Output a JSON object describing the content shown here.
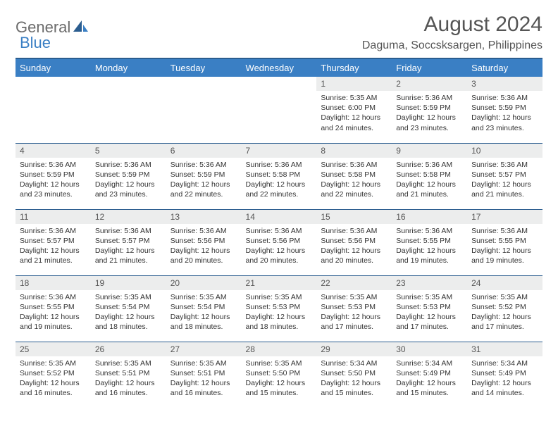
{
  "brand": {
    "word1": "General",
    "word2": "Blue"
  },
  "title": "August 2024",
  "location": "Daguma, Soccsksargen, Philippines",
  "colors": {
    "header_bg": "#3a7fc4",
    "header_border": "#2b5d8f",
    "daynum_bg": "#eceded",
    "text_muted": "#555"
  },
  "day_headers": [
    "Sunday",
    "Monday",
    "Tuesday",
    "Wednesday",
    "Thursday",
    "Friday",
    "Saturday"
  ],
  "weeks": [
    [
      {
        "n": "",
        "empty": true
      },
      {
        "n": "",
        "empty": true
      },
      {
        "n": "",
        "empty": true
      },
      {
        "n": "",
        "empty": true
      },
      {
        "n": "1",
        "sr": "Sunrise: 5:35 AM",
        "ss": "Sunset: 6:00 PM",
        "d1": "Daylight: 12 hours",
        "d2": "and 24 minutes."
      },
      {
        "n": "2",
        "sr": "Sunrise: 5:36 AM",
        "ss": "Sunset: 5:59 PM",
        "d1": "Daylight: 12 hours",
        "d2": "and 23 minutes."
      },
      {
        "n": "3",
        "sr": "Sunrise: 5:36 AM",
        "ss": "Sunset: 5:59 PM",
        "d1": "Daylight: 12 hours",
        "d2": "and 23 minutes."
      }
    ],
    [
      {
        "n": "4",
        "sr": "Sunrise: 5:36 AM",
        "ss": "Sunset: 5:59 PM",
        "d1": "Daylight: 12 hours",
        "d2": "and 23 minutes."
      },
      {
        "n": "5",
        "sr": "Sunrise: 5:36 AM",
        "ss": "Sunset: 5:59 PM",
        "d1": "Daylight: 12 hours",
        "d2": "and 23 minutes."
      },
      {
        "n": "6",
        "sr": "Sunrise: 5:36 AM",
        "ss": "Sunset: 5:59 PM",
        "d1": "Daylight: 12 hours",
        "d2": "and 22 minutes."
      },
      {
        "n": "7",
        "sr": "Sunrise: 5:36 AM",
        "ss": "Sunset: 5:58 PM",
        "d1": "Daylight: 12 hours",
        "d2": "and 22 minutes."
      },
      {
        "n": "8",
        "sr": "Sunrise: 5:36 AM",
        "ss": "Sunset: 5:58 PM",
        "d1": "Daylight: 12 hours",
        "d2": "and 22 minutes."
      },
      {
        "n": "9",
        "sr": "Sunrise: 5:36 AM",
        "ss": "Sunset: 5:58 PM",
        "d1": "Daylight: 12 hours",
        "d2": "and 21 minutes."
      },
      {
        "n": "10",
        "sr": "Sunrise: 5:36 AM",
        "ss": "Sunset: 5:57 PM",
        "d1": "Daylight: 12 hours",
        "d2": "and 21 minutes."
      }
    ],
    [
      {
        "n": "11",
        "sr": "Sunrise: 5:36 AM",
        "ss": "Sunset: 5:57 PM",
        "d1": "Daylight: 12 hours",
        "d2": "and 21 minutes."
      },
      {
        "n": "12",
        "sr": "Sunrise: 5:36 AM",
        "ss": "Sunset: 5:57 PM",
        "d1": "Daylight: 12 hours",
        "d2": "and 21 minutes."
      },
      {
        "n": "13",
        "sr": "Sunrise: 5:36 AM",
        "ss": "Sunset: 5:56 PM",
        "d1": "Daylight: 12 hours",
        "d2": "and 20 minutes."
      },
      {
        "n": "14",
        "sr": "Sunrise: 5:36 AM",
        "ss": "Sunset: 5:56 PM",
        "d1": "Daylight: 12 hours",
        "d2": "and 20 minutes."
      },
      {
        "n": "15",
        "sr": "Sunrise: 5:36 AM",
        "ss": "Sunset: 5:56 PM",
        "d1": "Daylight: 12 hours",
        "d2": "and 20 minutes."
      },
      {
        "n": "16",
        "sr": "Sunrise: 5:36 AM",
        "ss": "Sunset: 5:55 PM",
        "d1": "Daylight: 12 hours",
        "d2": "and 19 minutes."
      },
      {
        "n": "17",
        "sr": "Sunrise: 5:36 AM",
        "ss": "Sunset: 5:55 PM",
        "d1": "Daylight: 12 hours",
        "d2": "and 19 minutes."
      }
    ],
    [
      {
        "n": "18",
        "sr": "Sunrise: 5:36 AM",
        "ss": "Sunset: 5:55 PM",
        "d1": "Daylight: 12 hours",
        "d2": "and 19 minutes."
      },
      {
        "n": "19",
        "sr": "Sunrise: 5:35 AM",
        "ss": "Sunset: 5:54 PM",
        "d1": "Daylight: 12 hours",
        "d2": "and 18 minutes."
      },
      {
        "n": "20",
        "sr": "Sunrise: 5:35 AM",
        "ss": "Sunset: 5:54 PM",
        "d1": "Daylight: 12 hours",
        "d2": "and 18 minutes."
      },
      {
        "n": "21",
        "sr": "Sunrise: 5:35 AM",
        "ss": "Sunset: 5:53 PM",
        "d1": "Daylight: 12 hours",
        "d2": "and 18 minutes."
      },
      {
        "n": "22",
        "sr": "Sunrise: 5:35 AM",
        "ss": "Sunset: 5:53 PM",
        "d1": "Daylight: 12 hours",
        "d2": "and 17 minutes."
      },
      {
        "n": "23",
        "sr": "Sunrise: 5:35 AM",
        "ss": "Sunset: 5:53 PM",
        "d1": "Daylight: 12 hours",
        "d2": "and 17 minutes."
      },
      {
        "n": "24",
        "sr": "Sunrise: 5:35 AM",
        "ss": "Sunset: 5:52 PM",
        "d1": "Daylight: 12 hours",
        "d2": "and 17 minutes."
      }
    ],
    [
      {
        "n": "25",
        "sr": "Sunrise: 5:35 AM",
        "ss": "Sunset: 5:52 PM",
        "d1": "Daylight: 12 hours",
        "d2": "and 16 minutes."
      },
      {
        "n": "26",
        "sr": "Sunrise: 5:35 AM",
        "ss": "Sunset: 5:51 PM",
        "d1": "Daylight: 12 hours",
        "d2": "and 16 minutes."
      },
      {
        "n": "27",
        "sr": "Sunrise: 5:35 AM",
        "ss": "Sunset: 5:51 PM",
        "d1": "Daylight: 12 hours",
        "d2": "and 16 minutes."
      },
      {
        "n": "28",
        "sr": "Sunrise: 5:35 AM",
        "ss": "Sunset: 5:50 PM",
        "d1": "Daylight: 12 hours",
        "d2": "and 15 minutes."
      },
      {
        "n": "29",
        "sr": "Sunrise: 5:34 AM",
        "ss": "Sunset: 5:50 PM",
        "d1": "Daylight: 12 hours",
        "d2": "and 15 minutes."
      },
      {
        "n": "30",
        "sr": "Sunrise: 5:34 AM",
        "ss": "Sunset: 5:49 PM",
        "d1": "Daylight: 12 hours",
        "d2": "and 15 minutes."
      },
      {
        "n": "31",
        "sr": "Sunrise: 5:34 AM",
        "ss": "Sunset: 5:49 PM",
        "d1": "Daylight: 12 hours",
        "d2": "and 14 minutes."
      }
    ]
  ]
}
